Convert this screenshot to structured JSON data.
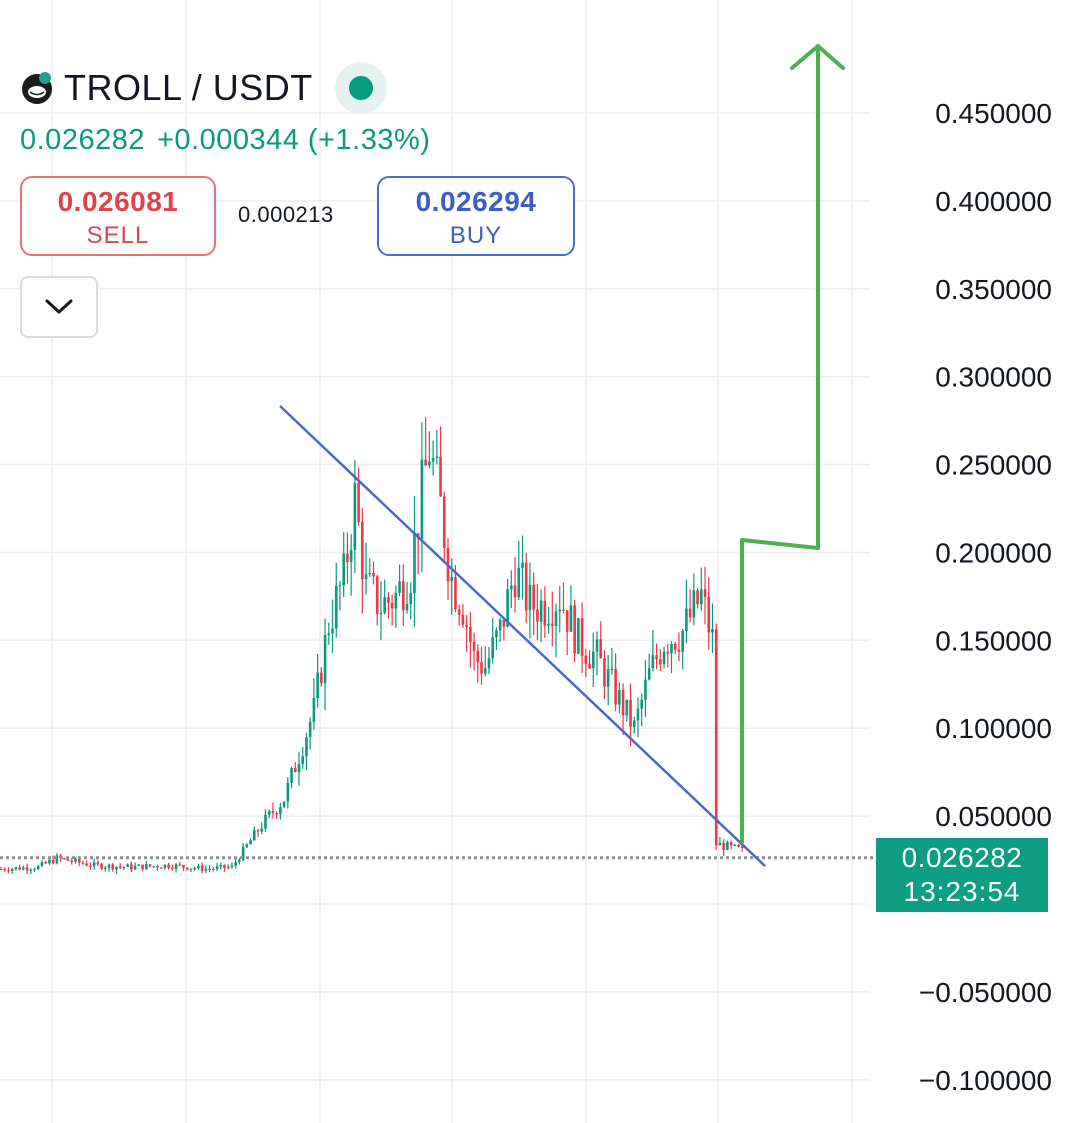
{
  "header": {
    "pair": "TROLL / USDT",
    "price": "0.026282",
    "change": "+0.000344 (+1.33%)",
    "colors": {
      "up": "#089981",
      "down": "#f23645"
    }
  },
  "trade": {
    "sell_price": "0.026081",
    "sell_label": "SELL",
    "buy_price": "0.026294",
    "buy_label": "BUY",
    "spread": "0.000213"
  },
  "current_price_tag": {
    "price": "0.026282",
    "countdown": "13:23:54"
  },
  "icons": [
    "troll-logo-icon",
    "status-dot-icon",
    "chevron-down-icon"
  ],
  "chart_data": {
    "type": "candlestick",
    "y_axis": {
      "side": "right",
      "ticks": [
        -0.1,
        -0.05,
        0,
        0.05,
        0.1,
        0.15,
        0.2,
        0.25,
        0.3,
        0.35,
        0.4,
        0.45
      ],
      "tick_labels": [
        "−0.100000",
        "−0.050000",
        "0.000000",
        "0.050000",
        "0.100000",
        "0.150000",
        "0.200000",
        "0.250000",
        "0.300000",
        "0.350000",
        "0.400000",
        "0.450000"
      ],
      "range": [
        -0.125,
        0.49
      ]
    },
    "grid": true,
    "current_price": 0.026282,
    "candle_count": 200,
    "price_path": [
      [
        0,
        0.02
      ],
      [
        10,
        0.021
      ],
      [
        15,
        0.026
      ],
      [
        25,
        0.022
      ],
      [
        35,
        0.021
      ],
      [
        45,
        0.022
      ],
      [
        55,
        0.02
      ],
      [
        62,
        0.021
      ],
      [
        65,
        0.03
      ],
      [
        70,
        0.045
      ],
      [
        76,
        0.06
      ],
      [
        80,
        0.085
      ],
      [
        84,
        0.11
      ],
      [
        88,
        0.16
      ],
      [
        92,
        0.185
      ],
      [
        95,
        0.23
      ],
      [
        98,
        0.18
      ],
      [
        102,
        0.17
      ],
      [
        106,
        0.175
      ],
      [
        110,
        0.19
      ],
      [
        112,
        0.22
      ],
      [
        115,
        0.26
      ],
      [
        118,
        0.225
      ],
      [
        121,
        0.185
      ],
      [
        124,
        0.17
      ],
      [
        127,
        0.14
      ],
      [
        130,
        0.135
      ],
      [
        134,
        0.155
      ],
      [
        138,
        0.19
      ],
      [
        142,
        0.17
      ],
      [
        146,
        0.17
      ],
      [
        150,
        0.175
      ],
      [
        155,
        0.15
      ],
      [
        160,
        0.14
      ],
      [
        165,
        0.12
      ],
      [
        170,
        0.1
      ],
      [
        174,
        0.13
      ],
      [
        178,
        0.15
      ],
      [
        183,
        0.155
      ],
      [
        188,
        0.175
      ],
      [
        191,
        0.15
      ]
    ],
    "trendline_up": [
      [
        0,
        0
      ],
      [
        1,
        0.195
      ],
      [
        2,
        0.2
      ],
      [
        3,
        0.48
      ]
    ],
    "trendline_up_color": "#4caf50",
    "trendline_down_color": "#4a68c8"
  }
}
